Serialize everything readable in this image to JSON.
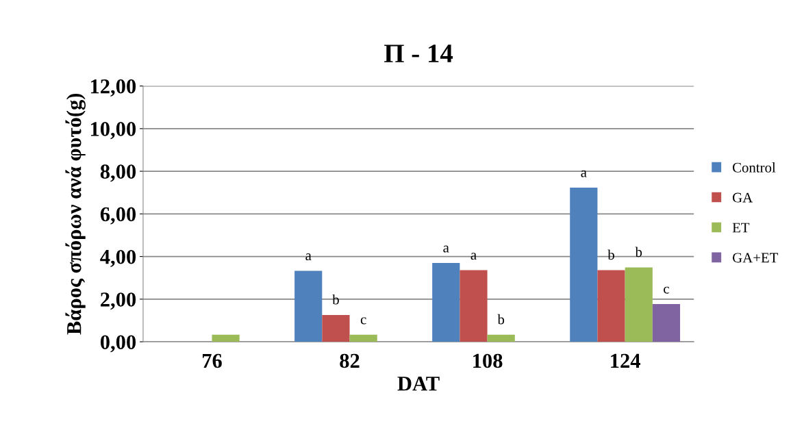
{
  "chart_data": {
    "type": "bar",
    "title": "Π - 14",
    "xlabel": "DAT",
    "ylabel": "Βάρος σπόρων ανά φυτό(g)",
    "categories": [
      "76",
      "82",
      "108",
      "124"
    ],
    "series": [
      {
        "name": "Control",
        "color": "#4f81bd",
        "values": [
          null,
          3.33,
          3.7,
          7.23
        ],
        "value_labels": [
          null,
          "a",
          "a",
          "a"
        ]
      },
      {
        "name": "GA",
        "color": "#c0504d",
        "values": [
          null,
          1.26,
          3.36,
          3.36
        ],
        "value_labels": [
          null,
          "b",
          "a",
          "b"
        ]
      },
      {
        "name": "ET",
        "color": "#9bbb59",
        "values": [
          0.33,
          0.33,
          0.33,
          3.49
        ],
        "value_labels": [
          null,
          "c",
          "b",
          "b"
        ]
      },
      {
        "name": "GA+ET",
        "color": "#8064a2",
        "values": [
          null,
          null,
          null,
          1.77
        ],
        "value_labels": [
          null,
          null,
          null,
          "c"
        ]
      }
    ],
    "ylim": [
      0,
      12
    ],
    "yticks": [
      {
        "value": 0,
        "label": "0,00"
      },
      {
        "value": 2,
        "label": "2,00"
      },
      {
        "value": 4,
        "label": "4,00"
      },
      {
        "value": 6,
        "label": "6,00"
      },
      {
        "value": 8,
        "label": "8,00"
      },
      {
        "value": 10,
        "label": "10,00"
      },
      {
        "value": 12,
        "label": "12,00"
      }
    ],
    "grid": "y",
    "legend": "right"
  }
}
